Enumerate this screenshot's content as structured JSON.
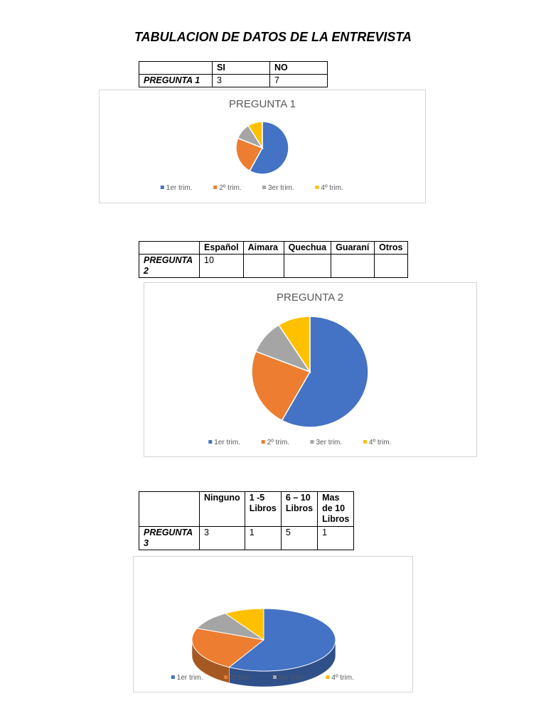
{
  "document": {
    "title": "TABULACION DE DATOS DE LA ENTREVISTA"
  },
  "table1": {
    "headers": [
      "",
      "SI",
      "NO"
    ],
    "row": [
      "PREGUNTA  1",
      "3",
      "7"
    ]
  },
  "table2": {
    "headers": [
      "",
      "Español",
      "Aimara",
      "Quechua",
      "Guaraní",
      "Otros"
    ],
    "row": [
      "PREGUNTA 2",
      "10",
      "",
      "",
      "",
      ""
    ]
  },
  "table3": {
    "headers": [
      "",
      "Ninguno",
      "1 -5 Libros",
      "6 – 10 Libros",
      "Mas de 10 Libros"
    ],
    "row": [
      "PREGUNTA 3",
      "3",
      "1",
      "5",
      "1"
    ]
  },
  "chart_data": [
    {
      "type": "pie",
      "title": "PREGUNTA 1",
      "categories": [
        "1er trim.",
        "2º trim.",
        "3er trim.",
        "4º trim."
      ],
      "values": [
        58,
        23,
        10,
        9
      ],
      "colors": [
        "#4472C4",
        "#ED7D31",
        "#A5A5A5",
        "#FFC000"
      ],
      "legend": "bottom"
    },
    {
      "type": "pie",
      "title": "PREGUNTA 2",
      "categories": [
        "1er trim.",
        "2º trim.",
        "3er trim.",
        "4º trim."
      ],
      "values": [
        58,
        23,
        10,
        9
      ],
      "colors": [
        "#4472C4",
        "#ED7D31",
        "#A5A5A5",
        "#FFC000"
      ],
      "legend": "bottom"
    },
    {
      "type": "pie",
      "title": "",
      "categories": [
        "1er trim.",
        "2º trim.",
        "3er trim.",
        "4º trim."
      ],
      "values": [
        58,
        23,
        10,
        9
      ],
      "colors": [
        "#4472C4",
        "#ED7D31",
        "#A5A5A5",
        "#FFC000"
      ],
      "legend": "bottom",
      "style": "3d"
    }
  ]
}
